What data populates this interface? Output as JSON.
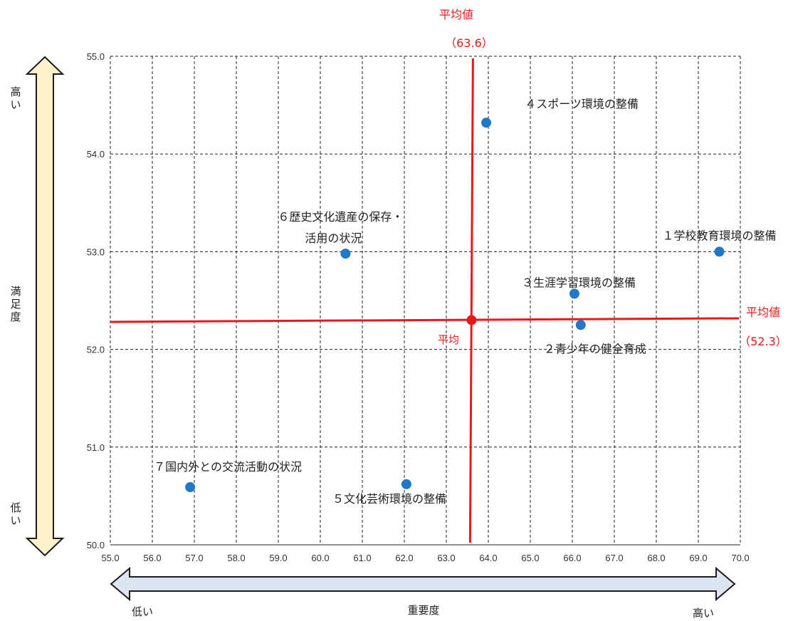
{
  "chart_data": {
    "type": "scatter",
    "xlabel": "重要度",
    "ylabel": "満足度",
    "xlim": [
      55.0,
      70.0
    ],
    "ylim": [
      50.0,
      55.0
    ],
    "x_ticks": [
      "55.0",
      "56.0",
      "57.0",
      "58.0",
      "59.0",
      "60.0",
      "61.0",
      "62.0",
      "63.0",
      "64.0",
      "65.0",
      "66.0",
      "67.0",
      "68.0",
      "69.0",
      "70.0"
    ],
    "y_ticks": [
      "50.0",
      "51.0",
      "52.0",
      "53.0",
      "54.0",
      "55.0"
    ],
    "grid": true,
    "points": [
      {
        "label": "１学校教育環境の整備",
        "x": 69.5,
        "y": 53.0
      },
      {
        "label": "２青少年の健全育成",
        "x": 66.2,
        "y": 52.25
      },
      {
        "label": "３生涯学習環境の整備",
        "x": 66.05,
        "y": 52.57
      },
      {
        "label": "４スポーツ環境の整備",
        "x": 63.95,
        "y": 54.32
      },
      {
        "label": "５文化芸術環境の整備",
        "x": 62.05,
        "y": 50.62
      },
      {
        "label_lines": [
          "６歴史文化遺産の保存・",
          "活用の状況"
        ],
        "x": 60.6,
        "y": 52.98
      },
      {
        "label": "７国内外との交流活動の状況",
        "x": 56.9,
        "y": 50.59
      }
    ],
    "average": {
      "x": 63.6,
      "y": 52.3,
      "x_title": "平均値",
      "x_value": "（63.6）",
      "y_title": "平均値",
      "y_value": "（52.3）",
      "center_label": "平均"
    },
    "x_low": "低い",
    "x_high": "高い",
    "y_high": [
      "高",
      "い"
    ],
    "y_low": [
      "低",
      "い"
    ],
    "y_axis_chars": [
      "満",
      "足",
      "度"
    ]
  },
  "colors": {
    "point": "#1f78c8",
    "average_line": "#e8191a",
    "grid": "#222222",
    "arrow_x_fill": "#dde5f2",
    "arrow_x_stroke": "#1c1c1c",
    "arrow_y_fill": "#fff2cc",
    "arrow_y_stroke": "#1c1c1c"
  }
}
